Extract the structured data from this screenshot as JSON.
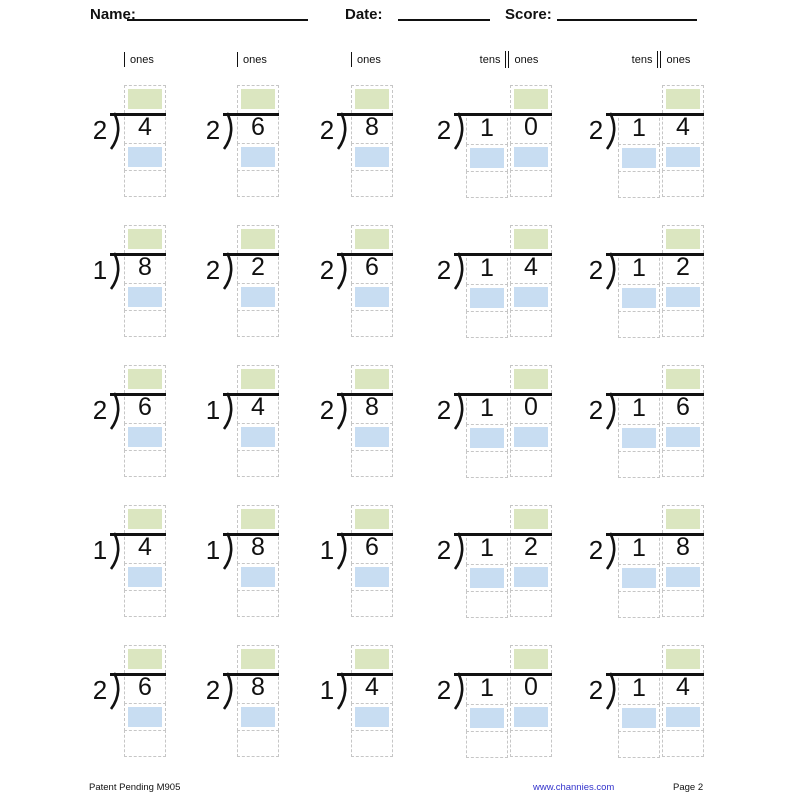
{
  "header": {
    "name_label": "Name:",
    "date_label": "Date:",
    "score_label": "Score:"
  },
  "place_value_labels": {
    "ones": "ones",
    "tens": "tens"
  },
  "colors": {
    "quotient_box": "#dbe6c0",
    "work_box": "#c8ddf2"
  },
  "problems": [
    {
      "divisor": "2",
      "digits": [
        "4"
      ]
    },
    {
      "divisor": "2",
      "digits": [
        "6"
      ]
    },
    {
      "divisor": "2",
      "digits": [
        "8"
      ]
    },
    {
      "divisor": "2",
      "digits": [
        "1",
        "0"
      ]
    },
    {
      "divisor": "2",
      "digits": [
        "1",
        "4"
      ]
    },
    {
      "divisor": "1",
      "digits": [
        "8"
      ]
    },
    {
      "divisor": "2",
      "digits": [
        "2"
      ]
    },
    {
      "divisor": "2",
      "digits": [
        "6"
      ]
    },
    {
      "divisor": "2",
      "digits": [
        "1",
        "4"
      ]
    },
    {
      "divisor": "2",
      "digits": [
        "1",
        "2"
      ]
    },
    {
      "divisor": "2",
      "digits": [
        "6"
      ]
    },
    {
      "divisor": "1",
      "digits": [
        "4"
      ]
    },
    {
      "divisor": "2",
      "digits": [
        "8"
      ]
    },
    {
      "divisor": "2",
      "digits": [
        "1",
        "0"
      ]
    },
    {
      "divisor": "2",
      "digits": [
        "1",
        "6"
      ]
    },
    {
      "divisor": "1",
      "digits": [
        "4"
      ]
    },
    {
      "divisor": "1",
      "digits": [
        "8"
      ]
    },
    {
      "divisor": "1",
      "digits": [
        "6"
      ]
    },
    {
      "divisor": "2",
      "digits": [
        "1",
        "2"
      ]
    },
    {
      "divisor": "2",
      "digits": [
        "1",
        "8"
      ]
    },
    {
      "divisor": "2",
      "digits": [
        "6"
      ]
    },
    {
      "divisor": "2",
      "digits": [
        "8"
      ]
    },
    {
      "divisor": "1",
      "digits": [
        "4"
      ]
    },
    {
      "divisor": "2",
      "digits": [
        "1",
        "0"
      ]
    },
    {
      "divisor": "2",
      "digits": [
        "1",
        "4"
      ]
    }
  ],
  "footer": {
    "patent": "Patent Pending M905",
    "website": "www.channies.com",
    "page": "Page 2"
  }
}
